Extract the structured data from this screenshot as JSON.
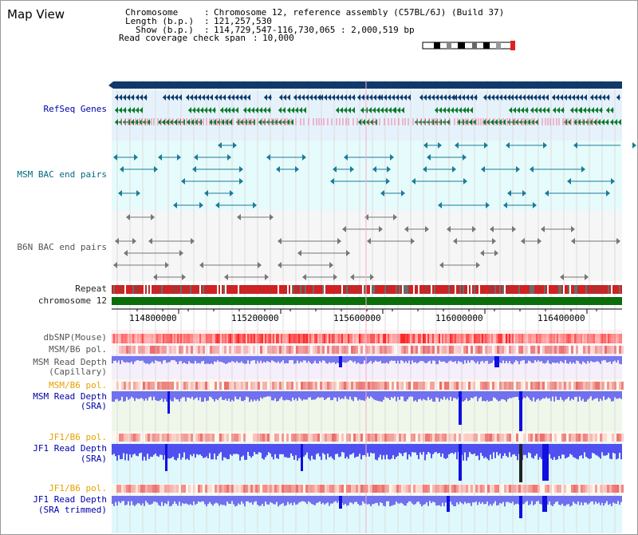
{
  "page": {
    "title": "Map View"
  },
  "info": {
    "chromosome_label": "Chromosome",
    "chromosome_value": "Chromosome 12, reference assembly (C57BL/6J) (Build 37)",
    "length_label": "Length (b.p.)",
    "length_value": "121,257,530",
    "show_label": "Show (b.p.)",
    "show_value": "114,729,547-116,730,065 : 2,000,519 bp",
    "span_label": "Read coverage check span",
    "span_value": "10,000"
  },
  "tracks": {
    "refseq": "RefSeq Genes",
    "msm_bac": "MSM BAC end pairs",
    "b6n_bac": "B6N BAC end pairs",
    "repeat": "Repeat",
    "chromosome": "chromosome 12",
    "dbsnp": "dbSNP(Mouse)",
    "msm_pol1": "MSM/B6 pol.",
    "msm_depth_cap_1": "MSM Read Depth",
    "msm_depth_cap_2": "(Capillary)",
    "msm_pol2": "MSM/B6 pol.",
    "msm_depth_sra_1": "MSM Read Depth",
    "msm_depth_sra_2": "(SRA)",
    "jf1_pol1": "JF1/B6 pol.",
    "jf1_depth_sra_1": "JF1 Read Depth",
    "jf1_depth_sra_2": "(SRA)",
    "jf1_pol2": "JF1/B6 pol.",
    "jf1_depth_trim_1": "JF1 Read Depth",
    "jf1_depth_trim_2": "(SRA trimmed)"
  },
  "axis": {
    "ticks": [
      "114800000",
      "115200000",
      "115600000",
      "116000000",
      "116400000"
    ]
  },
  "colors": {
    "navy_bar": "#0f3a6b",
    "refseq": "#0b7a2a",
    "repeat": "#d32020",
    "chromosome": "#0a6e0a",
    "snp": "#ff3030",
    "depth_blue": "#5f5fff"
  }
}
